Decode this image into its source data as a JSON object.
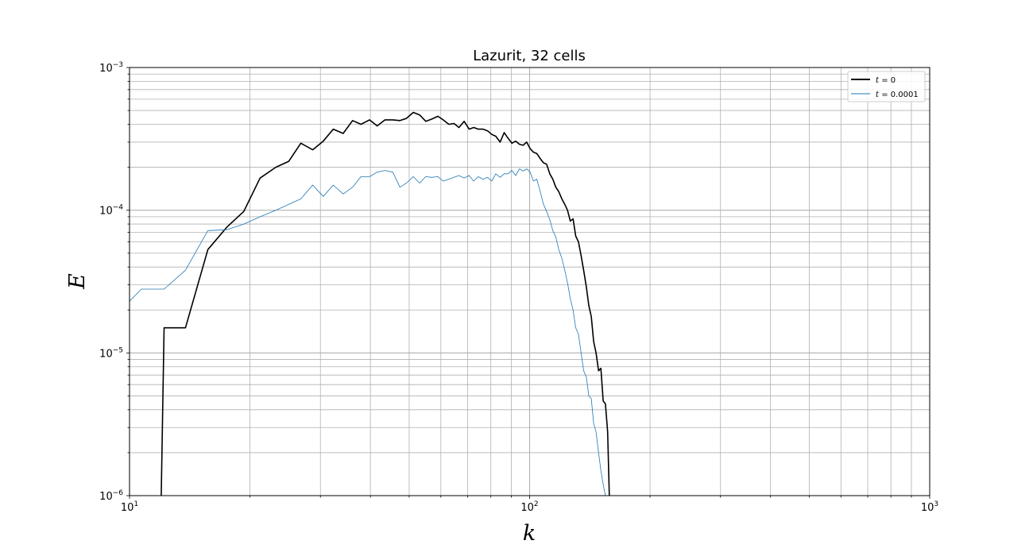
{
  "chart_data": {
    "type": "line",
    "title": "Lazurit, 32 cells",
    "xlabel": "k",
    "ylabel": "E",
    "x_scale": "log",
    "y_scale": "log",
    "xlim": [
      10,
      1000
    ],
    "ylim": [
      1e-06,
      0.001
    ],
    "x_ticks": [
      {
        "value": 10,
        "base": "10",
        "exp": "1"
      },
      {
        "value": 100,
        "base": "10",
        "exp": "2"
      },
      {
        "value": 1000,
        "base": "10",
        "exp": "3"
      }
    ],
    "y_ticks": [
      {
        "value": 1e-06,
        "base": "10",
        "exp": "−6"
      },
      {
        "value": 1e-05,
        "base": "10",
        "exp": "−5"
      },
      {
        "value": 0.0001,
        "base": "10",
        "exp": "−4"
      },
      {
        "value": 0.001,
        "base": "10",
        "exp": "−3"
      }
    ],
    "grid": true,
    "minor_grid": true,
    "legend_position": "top-right",
    "series": [
      {
        "name": "t = 0",
        "legend_math": "t",
        "legend_rest": " = 0",
        "color": "#000000",
        "x": [
          12.0,
          12.2,
          13.8,
          15.7,
          17.5,
          19.3,
          21.2,
          23.2,
          25.0,
          26.8,
          28.7,
          30.5,
          32.3,
          34.2,
          36.1,
          37.9,
          39.8,
          41.6,
          43.5,
          45.5,
          47.4,
          49.2,
          51.2,
          53.1,
          55.0,
          56.9,
          59.0,
          60.8,
          62.8,
          64.7,
          66.6,
          68.6,
          70.6,
          72.5,
          74.4,
          76.5,
          78.5,
          80.4,
          82.3,
          84.4,
          86.4,
          88.3,
          90.3,
          92.3,
          94.3,
          96.3,
          98.3,
          100.3,
          102.2,
          104.2,
          106.3,
          108.3,
          110.3,
          112.3,
          114.3,
          116.3,
          118.3,
          120.4,
          122.4,
          124.4,
          126.4,
          128.4,
          130.4,
          132.5,
          134.5,
          136.5,
          138.6,
          140.6,
          142.6,
          144.6,
          146.6,
          148.7,
          150.7,
          152.7,
          154.7,
          156.7,
          158.2
        ],
        "y": [
          1e-06,
          1.5e-05,
          1.5e-05,
          5.3e-05,
          7.6e-05,
          9.8e-05,
          0.000168,
          0.0002,
          0.00022,
          0.000295,
          0.000265,
          0.000305,
          0.00037,
          0.000345,
          0.000425,
          0.0004,
          0.00043,
          0.00039,
          0.00043,
          0.00043,
          0.000425,
          0.00044,
          0.000485,
          0.000465,
          0.00042,
          0.000435,
          0.000455,
          0.00043,
          0.0004,
          0.000405,
          0.00038,
          0.00042,
          0.00037,
          0.00038,
          0.00037,
          0.00037,
          0.00036,
          0.00034,
          0.00033,
          0.0003,
          0.00035,
          0.00032,
          0.000295,
          0.000305,
          0.00029,
          0.000285,
          0.0003,
          0.00027,
          0.000255,
          0.00025,
          0.00023,
          0.000215,
          0.00021,
          0.00018,
          0.000165,
          0.000145,
          0.000135,
          0.00012,
          0.00011,
          0.0001,
          8.4e-05,
          8.7e-05,
          6.6e-05,
          6e-05,
          4.8e-05,
          3.8e-05,
          2.9e-05,
          2.15e-05,
          1.8e-05,
          1.2e-05,
          1e-05,
          7.5e-06,
          7.8e-06,
          4.6e-06,
          4.4e-06,
          2.8e-06,
          1e-06
        ]
      },
      {
        "name": "t = 0.0001",
        "legend_math": "t",
        "legend_rest": " = 0.0001",
        "color": "#1f77b4",
        "x": [
          10.0,
          10.7,
          12.2,
          13.8,
          15.7,
          17.5,
          19.3,
          21.2,
          23.2,
          25.0,
          26.8,
          28.7,
          30.5,
          32.3,
          34.2,
          36.1,
          37.9,
          39.8,
          41.6,
          43.5,
          45.5,
          47.4,
          49.2,
          51.2,
          53.1,
          55.0,
          56.9,
          59.0,
          60.8,
          62.8,
          64.7,
          66.6,
          68.6,
          70.6,
          72.5,
          74.4,
          76.5,
          78.5,
          80.4,
          82.3,
          84.4,
          86.4,
          88.3,
          90.3,
          92.3,
          94.3,
          96.3,
          98.3,
          100.3,
          102.2,
          104.2,
          106.3,
          108.3,
          110.3,
          112.3,
          114.3,
          116.3,
          118.3,
          120.4,
          122.4,
          124.4,
          126.4,
          128.4,
          130.4,
          132.5,
          134.5,
          136.5,
          138.6,
          140.6,
          142.6,
          144.6,
          146.6,
          148.7,
          150.7,
          152.7,
          154.7,
          156.7,
          158.7,
          160.7,
          162.0
        ],
        "y": [
          2.3e-05,
          2.8e-05,
          2.8e-05,
          3.8e-05,
          7.2e-05,
          7.3e-05,
          8e-05,
          9e-05,
          0.0001,
          0.00011,
          0.00012,
          0.00015,
          0.000125,
          0.00015,
          0.00013,
          0.000145,
          0.000172,
          0.000172,
          0.000185,
          0.00019,
          0.000185,
          0.000145,
          0.000155,
          0.000172,
          0.000155,
          0.000172,
          0.00017,
          0.000172,
          0.00016,
          0.000165,
          0.00017,
          0.000175,
          0.000168,
          0.000175,
          0.00016,
          0.000172,
          0.000165,
          0.00017,
          0.00016,
          0.00018,
          0.00017,
          0.00018,
          0.00018,
          0.00019,
          0.000175,
          0.000195,
          0.000188,
          0.000195,
          0.000185,
          0.00016,
          0.000165,
          0.000135,
          0.00011,
          9.8e-05,
          8.6e-05,
          7.2e-05,
          6.5e-05,
          5.3e-05,
          4.6e-05,
          3.8e-05,
          3.1e-05,
          2.4e-05,
          2e-05,
          1.5e-05,
          1.35e-05,
          1e-05,
          7.5e-06,
          6.8e-06,
          5e-06,
          4.8e-06,
          3.2e-06,
          2.8e-06,
          2e-06,
          1.5e-06,
          1.2e-06,
          1e-06,
          1e-06,
          1e-06,
          1e-06,
          1e-06
        ]
      }
    ]
  }
}
